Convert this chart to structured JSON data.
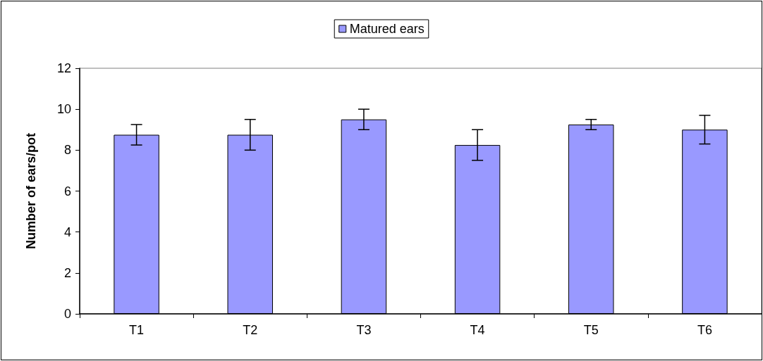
{
  "chart_data": {
    "type": "bar",
    "ylabel": "Number of ears/pot",
    "categories": [
      "T1",
      "T2",
      "T3",
      "T4",
      "T5",
      "T6"
    ],
    "series": [
      {
        "name": "Matured ears",
        "color": "#9999ff",
        "values": [
          8.75,
          8.75,
          9.5,
          8.25,
          9.25,
          9.0
        ],
        "errors": [
          0.5,
          0.75,
          0.5,
          0.75,
          0.25,
          0.7
        ]
      }
    ],
    "ylim": [
      0,
      12
    ],
    "yticks": [
      0,
      2,
      4,
      6,
      8,
      10,
      12
    ],
    "grid": false,
    "legend": "top"
  }
}
